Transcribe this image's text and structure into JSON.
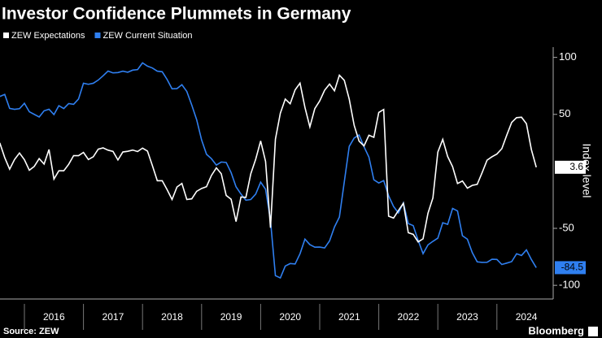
{
  "chart_data": {
    "type": "line",
    "title": "Investor Confidence Plummets in Germany",
    "ylabel": "Index level",
    "source": "Source: ZEW",
    "brand": "Bloomberg",
    "x": [
      null,
      null,
      null,
      null,
      null,
      "2016",
      "2016",
      "2016",
      "2016",
      "2016",
      "2016",
      "2016",
      "2016",
      "2016",
      "2016",
      "2016",
      "2016",
      "2017",
      "2017",
      "2017",
      "2017",
      "2017",
      "2017",
      "2017",
      "2017",
      "2017",
      "2017",
      "2017",
      "2017",
      "2018",
      "2018",
      "2018",
      "2018",
      "2018",
      "2018",
      "2018",
      "2018",
      "2018",
      "2018",
      "2018",
      "2018",
      "2019",
      "2019",
      "2019",
      "2019",
      "2019",
      "2019",
      "2019",
      "2019",
      "2019",
      "2019",
      "2019",
      "2019",
      "2020",
      "2020",
      "2020",
      "2020",
      "2020",
      "2020",
      "2020",
      "2020",
      "2020",
      "2020",
      "2020",
      "2020",
      "2021",
      "2021",
      "2021",
      "2021",
      "2021",
      "2021",
      "2021",
      "2021",
      "2021",
      "2021",
      "2021",
      "2021",
      "2022",
      "2022",
      "2022",
      "2022",
      "2022",
      "2022",
      "2022",
      "2022",
      "2022",
      "2022",
      "2022",
      "2022",
      "2023",
      "2023",
      "2023",
      "2023",
      "2023",
      "2023",
      "2023",
      "2023",
      "2023",
      "2023",
      "2023",
      "2023",
      "2024",
      "2024",
      "2024",
      "2024",
      "2024",
      "2024",
      "2024",
      "2024",
      "2024"
    ],
    "series": [
      {
        "name": "ZEW Expectations",
        "color": "#ffffff",
        "values": [
          25,
          12.1,
          1.9,
          10.4,
          16.1,
          10.2,
          1.0,
          4.3,
          11.2,
          6.4,
          19.2,
          -6.8,
          0.5,
          0.5,
          6.2,
          13.8,
          13.8,
          16.6,
          10.4,
          12.8,
          19.5,
          20.6,
          18.6,
          17.5,
          10.0,
          17.0,
          17.6,
          18.7,
          17.4,
          20.4,
          17.8,
          5.1,
          -8.2,
          -8.2,
          -16.1,
          -24.7,
          -13.7,
          -10.6,
          -24.7,
          -24.1,
          -17.5,
          -15.0,
          -13.4,
          -3.6,
          3.1,
          -2.1,
          -21.1,
          -24.5,
          -44.1,
          -22.5,
          -22.8,
          -2.1,
          10.7,
          26.7,
          8.7,
          -49.5,
          28.2,
          51.0,
          63.4,
          59.3,
          71.5,
          77.4,
          56.1,
          39.0,
          55.0,
          61.8,
          71.2,
          76.6,
          70.7,
          84.4,
          79.8,
          63.3,
          40.4,
          26.5,
          22.3,
          31.7,
          29.9,
          51.7,
          54.3,
          -39.3,
          -41.0,
          -34.3,
          -28.0,
          -53.8,
          -55.3,
          -61.9,
          -59.2,
          -36.7,
          -23.3,
          16.9,
          28.1,
          13.0,
          4.1,
          -10.7,
          -8.5,
          -14.7,
          -12.3,
          -11.4,
          -1.1,
          9.8,
          12.8,
          15.2,
          19.9,
          31.7,
          42.9,
          47.1,
          47.5,
          41.8,
          19.2,
          3.6
        ]
      },
      {
        "name": "ZEW Current Situation",
        "color": "#2f7ff0",
        "values": [
          65.7,
          67.5,
          55.2,
          54.4,
          55.0,
          59.7,
          52.3,
          50.0,
          47.7,
          53.1,
          54.5,
          49.8,
          57.6,
          55.1,
          59.5,
          58.8,
          63.5,
          77.3,
          76.4,
          77.3,
          80.1,
          83.9,
          88.0,
          86.4,
          86.7,
          87.9,
          87.0,
          88.8,
          89.3,
          95.2,
          92.3,
          90.7,
          87.9,
          87.4,
          80.6,
          72.4,
          72.6,
          76.0,
          70.1,
          58.2,
          45.3,
          27.6,
          15.0,
          11.1,
          5.5,
          8.2,
          7.8,
          -1.1,
          -13.5,
          -19.9,
          -25.3,
          -24.7,
          -19.9,
          -9.5,
          -15.7,
          -43.1,
          -91.5,
          -93.5,
          -83.1,
          -80.9,
          -81.3,
          -72.3,
          -59.5,
          -64.3,
          -66.5,
          -66.4,
          -67.2,
          -61.0,
          -48.8,
          -40.1,
          -9.1,
          21.9,
          29.3,
          31.9,
          21.6,
          12.5,
          -7.4,
          -10.2,
          -8.1,
          -21.4,
          -30.8,
          -36.5,
          -27.6,
          -45.8,
          -47.6,
          -60.5,
          -72.2,
          -64.5,
          -61.4,
          -58.6,
          -45.1,
          -46.5,
          -32.5,
          -34.8,
          -56.5,
          -59.5,
          -71.3,
          -79.4,
          -79.9,
          -79.8,
          -77.1,
          -77.3,
          -81.7,
          -80.5,
          -79.2,
          -72.3,
          -73.8,
          -68.9,
          -77.3,
          -84.5
        ]
      }
    ],
    "ylim": [
      -112,
      109
    ],
    "yticks": [
      100,
      50,
      -50,
      -100
    ],
    "grid": false,
    "legend": "top-left"
  }
}
